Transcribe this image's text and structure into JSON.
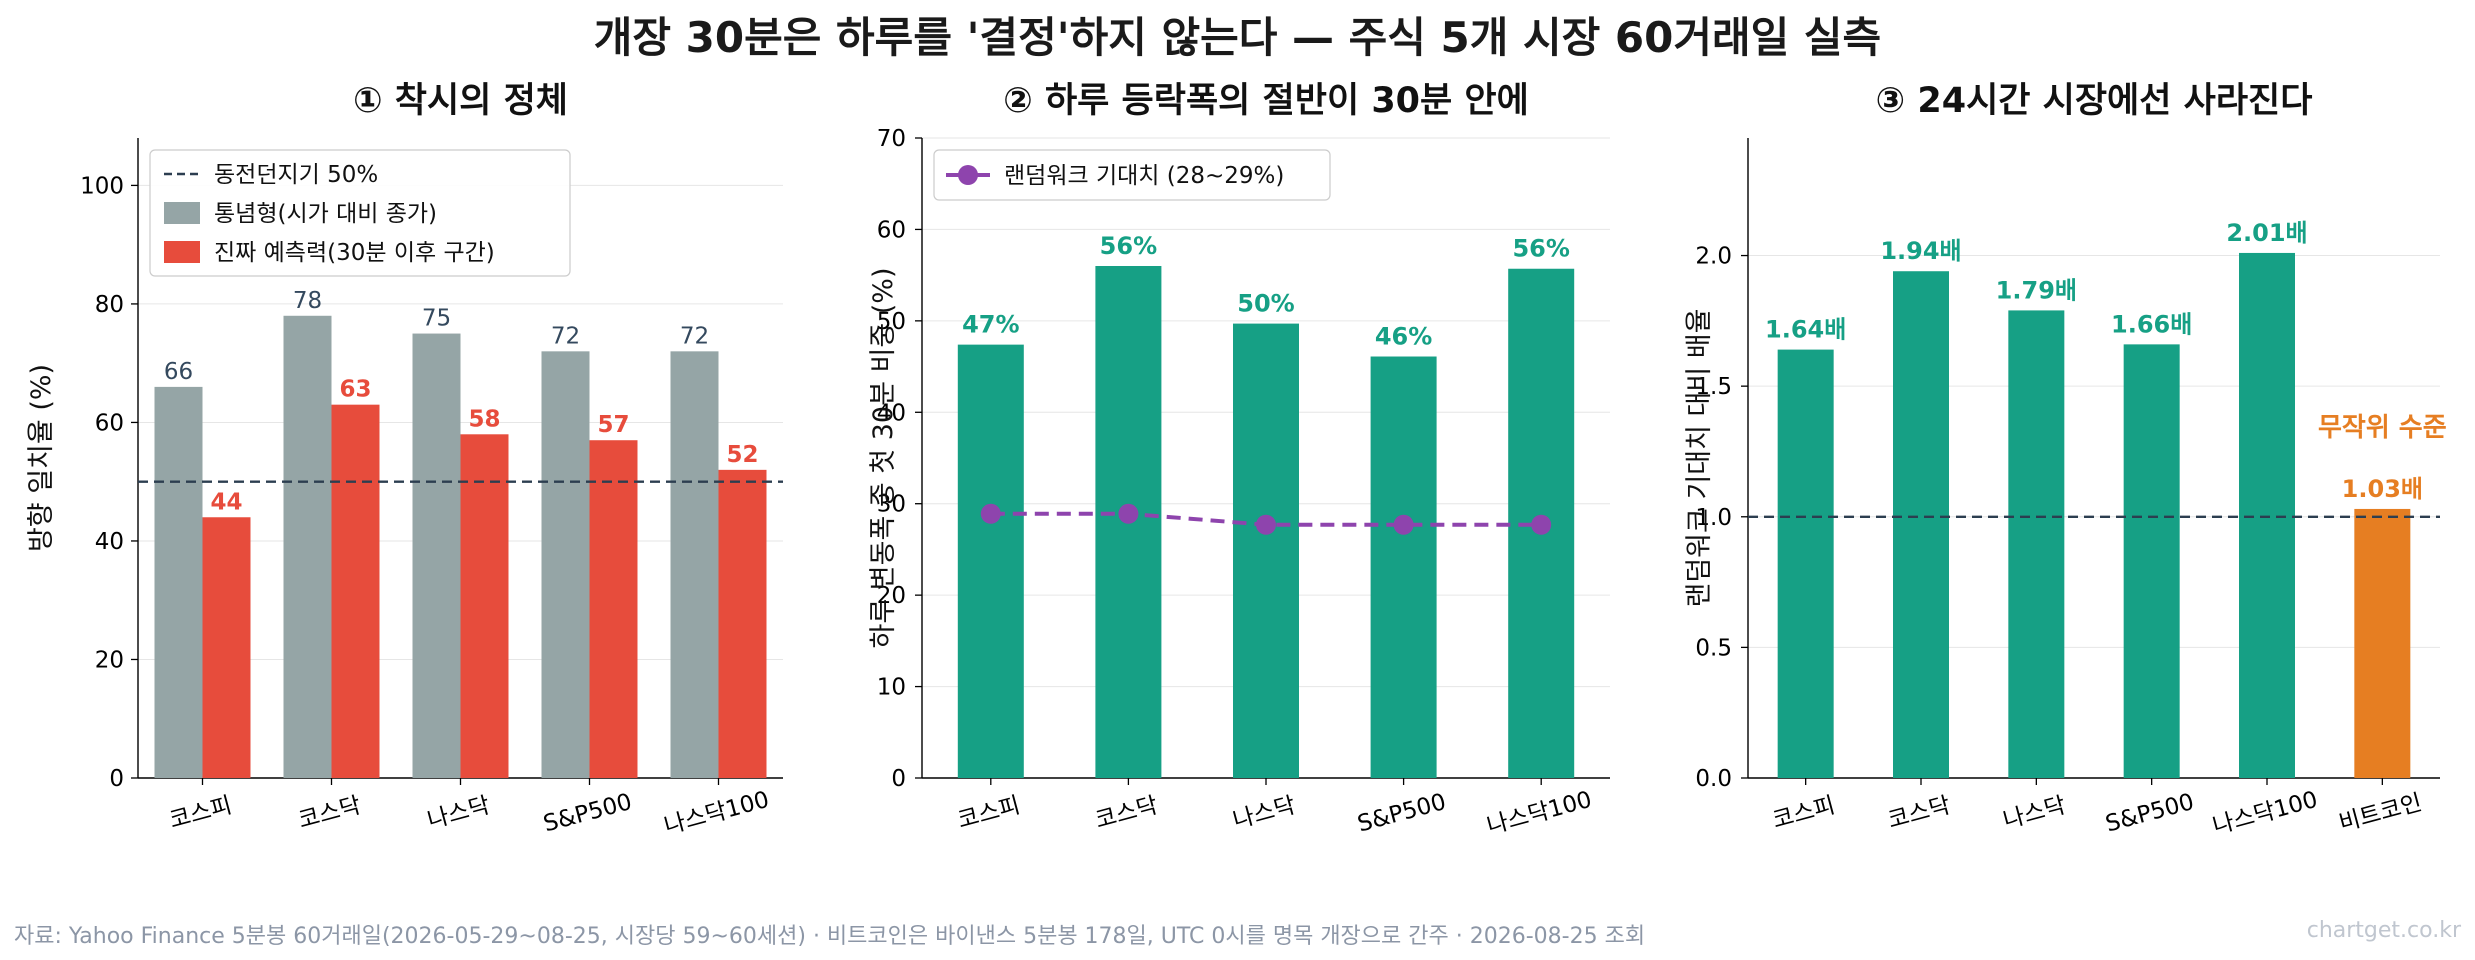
{
  "figure": {
    "suptitle": "개장 30분은 하루를 '결정'하지 않는다 — 주식 5개 시장 60거래일 실측",
    "footer": "자료: Yahoo Finance 5분봉 60거래일(2026-05-29~08-25, 시장당 59~60세션) · 비트코인은 바이낸스 5분봉 178일, UTC 0시를 명목 개장으로 간주 · 2026-08-25 조회",
    "watermark": "chartget.co.kr"
  },
  "colors": {
    "gray": "#95a5a6",
    "red": "#e74c3c",
    "green": "#16a085",
    "purple": "#8e44ad",
    "orange": "#e67e22",
    "navy": "#2c3e50"
  },
  "chart_data": [
    {
      "type": "bar",
      "title": "① 착시의 정체",
      "ylabel": "방향 일치율 (%)",
      "xlabel": "",
      "categories": [
        "코스피",
        "코스닥",
        "나스닥",
        "S&P500",
        "나스닥100"
      ],
      "series": [
        {
          "name": "통념형(시가 대비 종가)",
          "values": [
            66,
            78,
            75,
            72,
            72
          ],
          "labels": [
            "66",
            "78",
            "75",
            "72",
            "72"
          ]
        },
        {
          "name": "진짜 예측력(30분 이후 구간)",
          "values": [
            44,
            63,
            58,
            57,
            52
          ],
          "labels": [
            "44",
            "63",
            "58",
            "57",
            "52"
          ]
        }
      ],
      "reference_line": {
        "name": "동전던지기 50%",
        "value": 50
      },
      "ylim": [
        0,
        108
      ],
      "yticks": [
        "0",
        "20",
        "40",
        "60",
        "80",
        "100"
      ],
      "grid": true,
      "legend": "top-left"
    },
    {
      "type": "bar",
      "title": "② 하루 등락폭의 절반이 30분 안에",
      "ylabel": "하루 변동폭 중 첫 30분 비중 (%)",
      "xlabel": "",
      "categories": [
        "코스피",
        "코스닥",
        "나스닥",
        "S&P500",
        "나스닥100"
      ],
      "values": [
        47.4,
        56.0,
        49.7,
        46.1,
        55.7
      ],
      "value_labels": [
        "47%",
        "56%",
        "50%",
        "46%",
        "56%"
      ],
      "line_series": {
        "name": "랜덤워크 기대치 (28~29%)",
        "values": [
          28.9,
          28.9,
          27.7,
          27.7,
          27.7
        ]
      },
      "ylim": [
        0,
        70
      ],
      "yticks": [
        "0",
        "10",
        "20",
        "30",
        "40",
        "50",
        "60",
        "70"
      ],
      "grid": true,
      "legend": "top-left"
    },
    {
      "type": "bar",
      "title": "③ 24시간 시장에선 사라진다",
      "ylabel": "랜덤워크 기대치 대비 배율",
      "xlabel": "",
      "categories": [
        "코스피",
        "코스닥",
        "나스닥",
        "S&P500",
        "나스닥100",
        "비트코인"
      ],
      "values": [
        1.64,
        1.94,
        1.79,
        1.66,
        2.01,
        1.03
      ],
      "value_labels": [
        "1.64배",
        "1.94배",
        "1.79배",
        "1.66배",
        "2.01배",
        "1.03배"
      ],
      "annotation": "무작위 수준",
      "reference_value": 1.0,
      "ylim": [
        0,
        2.45
      ],
      "yticks": [
        "0.0",
        "0.5",
        "1.0",
        "1.5",
        "2.0"
      ],
      "grid": true
    }
  ]
}
